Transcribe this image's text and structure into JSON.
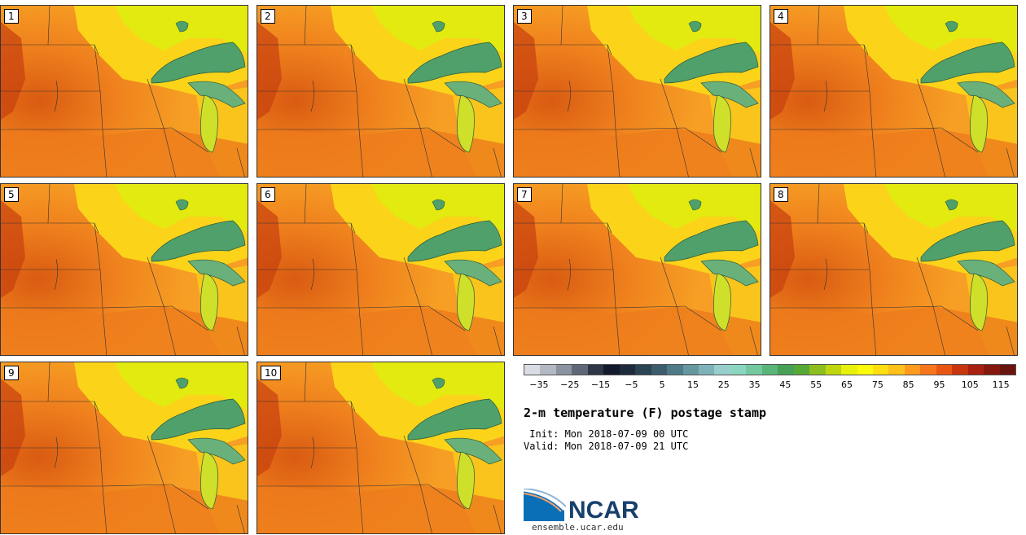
{
  "panels": [
    {
      "label": "1"
    },
    {
      "label": "2"
    },
    {
      "label": "3"
    },
    {
      "label": "4"
    },
    {
      "label": "5"
    },
    {
      "label": "6"
    },
    {
      "label": "7"
    },
    {
      "label": "8"
    },
    {
      "label": "9"
    },
    {
      "label": "10"
    }
  ],
  "colorbar": {
    "colors": [
      "#d9dde3",
      "#b3b9c2",
      "#8c93a0",
      "#5f6878",
      "#2e3647",
      "#121a2c",
      "#1d2b3d",
      "#2b4454",
      "#3c5e6c",
      "#4e7b87",
      "#64979f",
      "#7db3b8",
      "#98cfcc",
      "#8ad6c0",
      "#74c89e",
      "#5ab57b",
      "#46a055",
      "#57a936",
      "#8cbe1f",
      "#bfd60f",
      "#e8f10b",
      "#fbfb0b",
      "#ffdf10",
      "#ffc01a",
      "#ff9a1f",
      "#f7761c",
      "#ea5514",
      "#c8350e",
      "#a82110",
      "#861810",
      "#6a1410"
    ],
    "ticks": [
      "−35",
      "−25",
      "−15",
      "−5",
      "5",
      "15",
      "25",
      "35",
      "45",
      "55",
      "65",
      "75",
      "85",
      "95",
      "105",
      "115"
    ],
    "tick_values": [
      -35,
      -25,
      -15,
      -5,
      5,
      15,
      25,
      35,
      45,
      55,
      65,
      75,
      85,
      95,
      105,
      115
    ],
    "range": [
      -40,
      120
    ]
  },
  "title": "2-m temperature (F) postage stamp",
  "init": " Init: Mon 2018-07-09 00 UTC",
  "valid": "Valid: Mon 2018-07-09 21 UTC",
  "logo": {
    "text": "NCAR",
    "url": "ensemble.ucar.edu"
  }
}
